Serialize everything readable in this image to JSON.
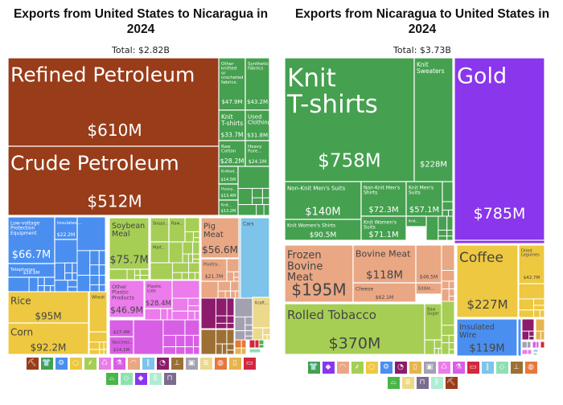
{
  "chart_data": [
    {
      "type": "treemap",
      "title": "Exports from United States to Nicaragua in 2024",
      "subtitle": "Total: $2.82B",
      "total": "$2.82B",
      "items": [
        {
          "name": "Refined Petroleum",
          "value": "$610M",
          "value_musd": 610,
          "sector": "Mineral Products",
          "color": "#993c19"
        },
        {
          "name": "Crude Petroleum",
          "value": "$512M",
          "value_musd": 512,
          "sector": "Mineral Products",
          "color": "#993c19"
        },
        {
          "name": "Other knitted or crocheted fabrics.",
          "value": "$47.9M",
          "value_musd": 47.9,
          "sector": "Textiles",
          "color": "#45a04f"
        },
        {
          "name": "Synthetic Fabrics",
          "value": "$43.2M",
          "value_musd": 43.2,
          "sector": "Textiles",
          "color": "#45a04f"
        },
        {
          "name": "Knit T-shirts",
          "value": "$33.7M",
          "value_musd": 33.7,
          "sector": "Textiles",
          "color": "#45a04f"
        },
        {
          "name": "Used Clothing",
          "value": "$31.8M",
          "value_musd": 31.8,
          "sector": "Textiles",
          "color": "#45a04f"
        },
        {
          "name": "Raw Cotton",
          "value": "$28.2M",
          "value_musd": 28.2,
          "sector": "Textiles",
          "color": "#45a04f"
        },
        {
          "name": "Heavy Pure...",
          "value": "$24.1M",
          "value_musd": 24.1,
          "sector": "Textiles",
          "color": "#45a04f"
        },
        {
          "name": "Knitted...",
          "value": "$14.5M",
          "value_musd": 14.5,
          "sector": "Textiles",
          "color": "#45a04f"
        },
        {
          "name": "Heavy...",
          "value": "$13.4M",
          "value_musd": 13.4,
          "sector": "Textiles",
          "color": "#45a04f"
        },
        {
          "name": "Knit...",
          "value": "$13.2M",
          "value_musd": 13.2,
          "sector": "Textiles",
          "color": "#45a04f"
        },
        {
          "name": "Low-voltage Protection Equipment",
          "value": "$66.7M",
          "value_musd": 66.7,
          "sector": "Machines",
          "color": "#4a8ff0"
        },
        {
          "name": "Insulated...",
          "value": "$22.2M",
          "value_musd": 22.2,
          "sector": "Machines",
          "color": "#4a8ff0"
        },
        {
          "name": "Telephones",
          "value": "$28.9M",
          "value_musd": 28.9,
          "sector": "Machines",
          "color": "#4a8ff0"
        },
        {
          "name": "Soybean Meal",
          "value": "$75.7M",
          "value_musd": 75.7,
          "sector": "Foodstuffs",
          "color": "#a6ce55"
        },
        {
          "name": "Soups...",
          "value": "",
          "sector": "Foodstuffs",
          "color": "#a6ce55"
        },
        {
          "name": "Raw...",
          "value": "",
          "sector": "Foodstuffs",
          "color": "#a6ce55"
        },
        {
          "name": "Malt...",
          "value": "",
          "sector": "Foodstuffs",
          "color": "#a6ce55"
        },
        {
          "name": "Pig Meat",
          "value": "$56.6M",
          "value_musd": 56.6,
          "sector": "Animal Products",
          "color": "#e9a784"
        },
        {
          "name": "Poultry...",
          "value": "$21.7M",
          "value_musd": 21.7,
          "sector": "Animal Products",
          "color": "#e9a784"
        },
        {
          "name": "Cars",
          "value": "",
          "sector": "Transportation",
          "color": "#7ec3ea"
        },
        {
          "name": "Other Plastic Products",
          "value": "$46.9M",
          "value_musd": 46.9,
          "sector": "Plastics and Rubbers",
          "color": "#ec7bec"
        },
        {
          "name": "Plastic Lids",
          "value": "$28.4M",
          "value_musd": 28.4,
          "sector": "Plastics and Rubbers",
          "color": "#ec7bec"
        },
        {
          "name": "",
          "value": "$17.4M",
          "value_musd": 17.4,
          "sector": "Chemical Products",
          "color": "#d95ee6"
        },
        {
          "name": "Vaccines...",
          "value": "$14.1M",
          "value_musd": 14.1,
          "sector": "Chemical Products",
          "color": "#d95ee6"
        },
        {
          "name": "Rice",
          "value": "$95M",
          "value_musd": 95,
          "sector": "Vegetable Products",
          "color": "#edc840"
        },
        {
          "name": "Corn",
          "value": "$92.2M",
          "value_musd": 92.2,
          "sector": "Vegetable Products",
          "color": "#edc840"
        },
        {
          "name": "Wheat",
          "value": "",
          "sector": "Vegetable Products",
          "color": "#edc840"
        },
        {
          "name": "Kraft...",
          "value": "",
          "sector": "Paper Goods",
          "color": "#ecd98b"
        }
      ],
      "legend_icons": [
        {
          "sector": "Mineral Products",
          "icon": "pickaxe-icon",
          "glyph": "⛏",
          "color": "#993c19"
        },
        {
          "sector": "Textiles",
          "icon": "shirt-icon",
          "glyph": "👕",
          "color": "#45a04f"
        },
        {
          "sector": "Machines",
          "icon": "gear-icon",
          "glyph": "⚙",
          "color": "#4a8ff0"
        },
        {
          "sector": "Vegetable Products",
          "icon": "fruit-icon",
          "glyph": "○",
          "color": "#edc840"
        },
        {
          "sector": "Foodstuffs",
          "icon": "wheat-icon",
          "glyph": "⸙",
          "color": "#a6ce55"
        },
        {
          "sector": "Plastics and Rubbers",
          "icon": "recycle-icon",
          "glyph": "♺",
          "color": "#ec7bec"
        },
        {
          "sector": "Chemical Products",
          "icon": "flask-icon",
          "glyph": "⚗",
          "color": "#d95ee6"
        },
        {
          "sector": "Animal Products",
          "icon": "cow-icon",
          "glyph": "◠",
          "color": "#e9a784"
        },
        {
          "sector": "Transportation",
          "icon": "road-icon",
          "glyph": "∥",
          "color": "#7ec3ea"
        },
        {
          "sector": "Instruments",
          "icon": "gauge-icon",
          "glyph": "◔",
          "color": "#8d1b6b"
        },
        {
          "sector": "Metals",
          "icon": "anvil-icon",
          "glyph": "⊥",
          "color": "#9c6f35"
        },
        {
          "sector": "Miscellaneous",
          "icon": "box-icon",
          "glyph": "▣",
          "color": "#a3a0b0"
        },
        {
          "sector": "Paper Goods",
          "icon": "scroll-icon",
          "glyph": "≣",
          "color": "#ecd98b"
        },
        {
          "sector": "Animal and Vegetable Bi-Products",
          "icon": "oil-icon",
          "glyph": "◍",
          "color": "#e6783a"
        },
        {
          "sector": "Foodstuffs Beverages",
          "icon": "bottle-icon",
          "glyph": "▯",
          "color": "#e6b44f"
        },
        {
          "sector": "Weapons",
          "icon": "money-icon",
          "glyph": "▭",
          "color": "#d1283e"
        },
        {
          "sector": "Footwear and Headwear",
          "icon": "shoe-icon",
          "glyph": "⌓",
          "color": "#4ab54a"
        },
        {
          "sector": "Animal Hides",
          "icon": "hide-icon",
          "glyph": "◇",
          "color": "#8ee0b2"
        },
        {
          "sector": "Precious Metals",
          "icon": "diamond-icon",
          "glyph": "◆",
          "color": "#8a36ec"
        },
        {
          "sector": "Stone and Glass",
          "icon": "glass-icon",
          "glyph": "⫼",
          "color": "#b0ecd4"
        },
        {
          "sector": "Arts and Antiques",
          "icon": "easel-icon",
          "glyph": "⊓",
          "color": "#7b6b8f"
        }
      ]
    },
    {
      "type": "treemap",
      "title": "Exports from Nicaragua to United States in 2024",
      "subtitle": "Total: $3.73B",
      "total": "$3.73B",
      "items": [
        {
          "name": "Knit T-shirts",
          "value": "$758M",
          "value_musd": 758,
          "sector": "Textiles",
          "color": "#45a04f"
        },
        {
          "name": "Knit Sweaters",
          "value": "$228M",
          "value_musd": 228,
          "sector": "Textiles",
          "color": "#45a04f"
        },
        {
          "name": "Gold",
          "value": "$785M",
          "value_musd": 785,
          "sector": "Precious Metals",
          "color": "#8a36ec"
        },
        {
          "name": "Non-Knit Men's Suits",
          "value": "$140M",
          "value_musd": 140,
          "sector": "Textiles",
          "color": "#45a04f"
        },
        {
          "name": "Non-Knit Men's Shirts",
          "value": "$72.3M",
          "value_musd": 72.3,
          "sector": "Textiles",
          "color": "#45a04f"
        },
        {
          "name": "Knit Men's Suits",
          "value": "$57.1M",
          "value_musd": 57.1,
          "sector": "Textiles",
          "color": "#45a04f"
        },
        {
          "name": "Knit Women's Shirts",
          "value": "$90.5M",
          "value_musd": 90.5,
          "sector": "Textiles",
          "color": "#45a04f"
        },
        {
          "name": "Knit Women's Suits",
          "value": "$71.1M",
          "value_musd": 71.1,
          "sector": "Textiles",
          "color": "#45a04f"
        },
        {
          "name": "Knit...",
          "value": "",
          "sector": "Textiles",
          "color": "#45a04f"
        },
        {
          "name": "Frozen Bovine Meat",
          "value": "$195M",
          "value_musd": 195,
          "sector": "Animal Products",
          "color": "#e9a784"
        },
        {
          "name": "Bovine Meat",
          "value": "$118M",
          "value_musd": 118,
          "sector": "Animal Products",
          "color": "#e9a784"
        },
        {
          "name": "",
          "value": "$46.5M",
          "value_musd": 46.5,
          "sector": "Animal Products",
          "color": "#e9a784"
        },
        {
          "name": "Cheese",
          "value": "$62.1M",
          "value_musd": 62.1,
          "sector": "Animal Products",
          "color": "#e9a784"
        },
        {
          "name": "Edible...",
          "value": "",
          "sector": "Animal Products",
          "color": "#e9a784"
        },
        {
          "name": "Rolled Tobacco",
          "value": "$370M",
          "value_musd": 370,
          "sector": "Foodstuffs",
          "color": "#a6ce55"
        },
        {
          "name": "Raw Sugar",
          "value": "",
          "sector": "Foodstuffs",
          "color": "#a6ce55"
        },
        {
          "name": "Coffee",
          "value": "$227M",
          "value_musd": 227,
          "sector": "Vegetable Products",
          "color": "#edc840"
        },
        {
          "name": "Dried Legumes",
          "value": "$42.7M",
          "value_musd": 42.7,
          "sector": "Vegetable Products",
          "color": "#edc840"
        },
        {
          "name": "Insulated Wire",
          "value": "$119M",
          "value_musd": 119,
          "sector": "Machines",
          "color": "#4a8ff0"
        }
      ],
      "legend_icons": [
        {
          "sector": "Textiles",
          "icon": "shirt-icon",
          "glyph": "👕",
          "color": "#45a04f"
        },
        {
          "sector": "Precious Metals",
          "icon": "diamond-icon",
          "glyph": "◆",
          "color": "#8a36ec"
        },
        {
          "sector": "Animal Products",
          "icon": "cow-icon",
          "glyph": "◠",
          "color": "#e9a784"
        },
        {
          "sector": "Foodstuffs",
          "icon": "wheat-icon",
          "glyph": "⸙",
          "color": "#a6ce55"
        },
        {
          "sector": "Vegetable Products",
          "icon": "fruit-icon",
          "glyph": "○",
          "color": "#edc840"
        },
        {
          "sector": "Machines",
          "icon": "gear-icon",
          "glyph": "⚙",
          "color": "#4a8ff0"
        },
        {
          "sector": "Instruments",
          "icon": "gauge-icon",
          "glyph": "◔",
          "color": "#8d1b6b"
        },
        {
          "sector": "Foodstuffs Beverages",
          "icon": "bottle-icon",
          "glyph": "▯",
          "color": "#e6b44f"
        },
        {
          "sector": "Miscellaneous",
          "icon": "box-icon",
          "glyph": "▣",
          "color": "#a3a0b0"
        },
        {
          "sector": "Plastics and Rubbers",
          "icon": "recycle-icon",
          "glyph": "♺",
          "color": "#ec7bec"
        },
        {
          "sector": "Chemical Products",
          "icon": "flask-icon",
          "glyph": "⚗",
          "color": "#d95ee6"
        },
        {
          "sector": "Weapons",
          "icon": "money-icon",
          "glyph": "▭",
          "color": "#d1283e"
        },
        {
          "sector": "Transportation",
          "icon": "road-icon",
          "glyph": "∥",
          "color": "#7ec3ea"
        },
        {
          "sector": "Animal Hides",
          "icon": "hide-icon",
          "glyph": "◇",
          "color": "#8ee0b2"
        },
        {
          "sector": "Metals",
          "icon": "anvil-icon",
          "glyph": "⊥",
          "color": "#9c6f35"
        },
        {
          "sector": "Animal and Vegetable Bi-Products",
          "icon": "oil-icon",
          "glyph": "◍",
          "color": "#e6783a"
        },
        {
          "sector": "Footwear and Headwear",
          "icon": "shoe-icon",
          "glyph": "⌓",
          "color": "#4ab54a"
        },
        {
          "sector": "Paper Goods",
          "icon": "scroll-icon",
          "glyph": "≣",
          "color": "#ecd98b"
        },
        {
          "sector": "Arts and Antiques",
          "icon": "easel-icon",
          "glyph": "⊓",
          "color": "#7b6b8f"
        },
        {
          "sector": "Stone and Glass",
          "icon": "glass-icon",
          "glyph": "⫼",
          "color": "#b0ecd4"
        },
        {
          "sector": "Mineral Products",
          "icon": "pickaxe-icon",
          "glyph": "⛏",
          "color": "#993c19"
        }
      ]
    }
  ]
}
